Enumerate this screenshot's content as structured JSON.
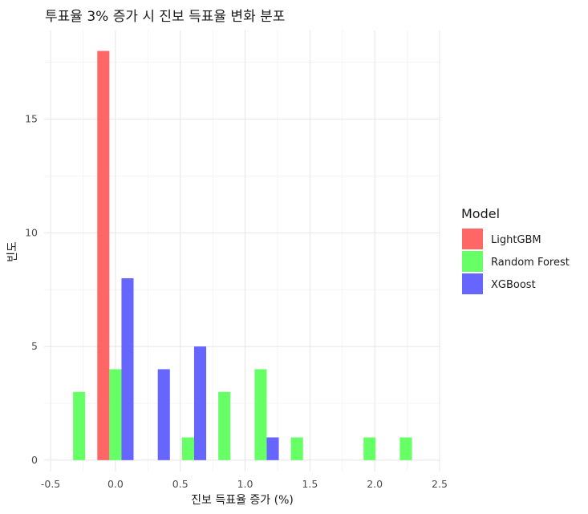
{
  "chart_data": {
    "type": "bar",
    "title": "투표율 3% 증가 시 진보 득표율 변화 분포",
    "xlabel": "진보 득표율 증가 (%)",
    "ylabel": "빈도",
    "xlim": [
      -0.55,
      2.5
    ],
    "ylim": [
      -0.5,
      18.9
    ],
    "x_ticks": [
      -0.5,
      0.0,
      0.5,
      1.0,
      1.5,
      2.0,
      2.5
    ],
    "x_tick_labels": [
      "-0.5",
      "0.0",
      "0.5",
      "1.0",
      "1.5",
      "2.0",
      "2.5"
    ],
    "y_ticks": [
      0,
      5,
      10,
      15
    ],
    "y_tick_labels": [
      "0",
      "5",
      "10",
      "15"
    ],
    "bin_width": 0.28,
    "bins": [
      -0.28,
      0.0,
      0.28,
      0.56,
      0.84,
      1.12,
      1.4,
      1.68,
      1.96,
      2.24
    ],
    "grid": true,
    "legend_title": "Model",
    "legend_position": "right",
    "series": [
      {
        "name": "LightGBM",
        "color": "#FF6666",
        "values": [
          0,
          18,
          0,
          0,
          0,
          0,
          0,
          0,
          0,
          0
        ]
      },
      {
        "name": "Random Forest",
        "color": "#66FF66",
        "values": [
          3,
          4,
          0,
          1,
          3,
          4,
          1,
          0,
          1,
          1
        ]
      },
      {
        "name": "XGBoost",
        "color": "#6666FF",
        "values": [
          0,
          8,
          4,
          5,
          0,
          1,
          0,
          0,
          0,
          0
        ]
      }
    ]
  }
}
